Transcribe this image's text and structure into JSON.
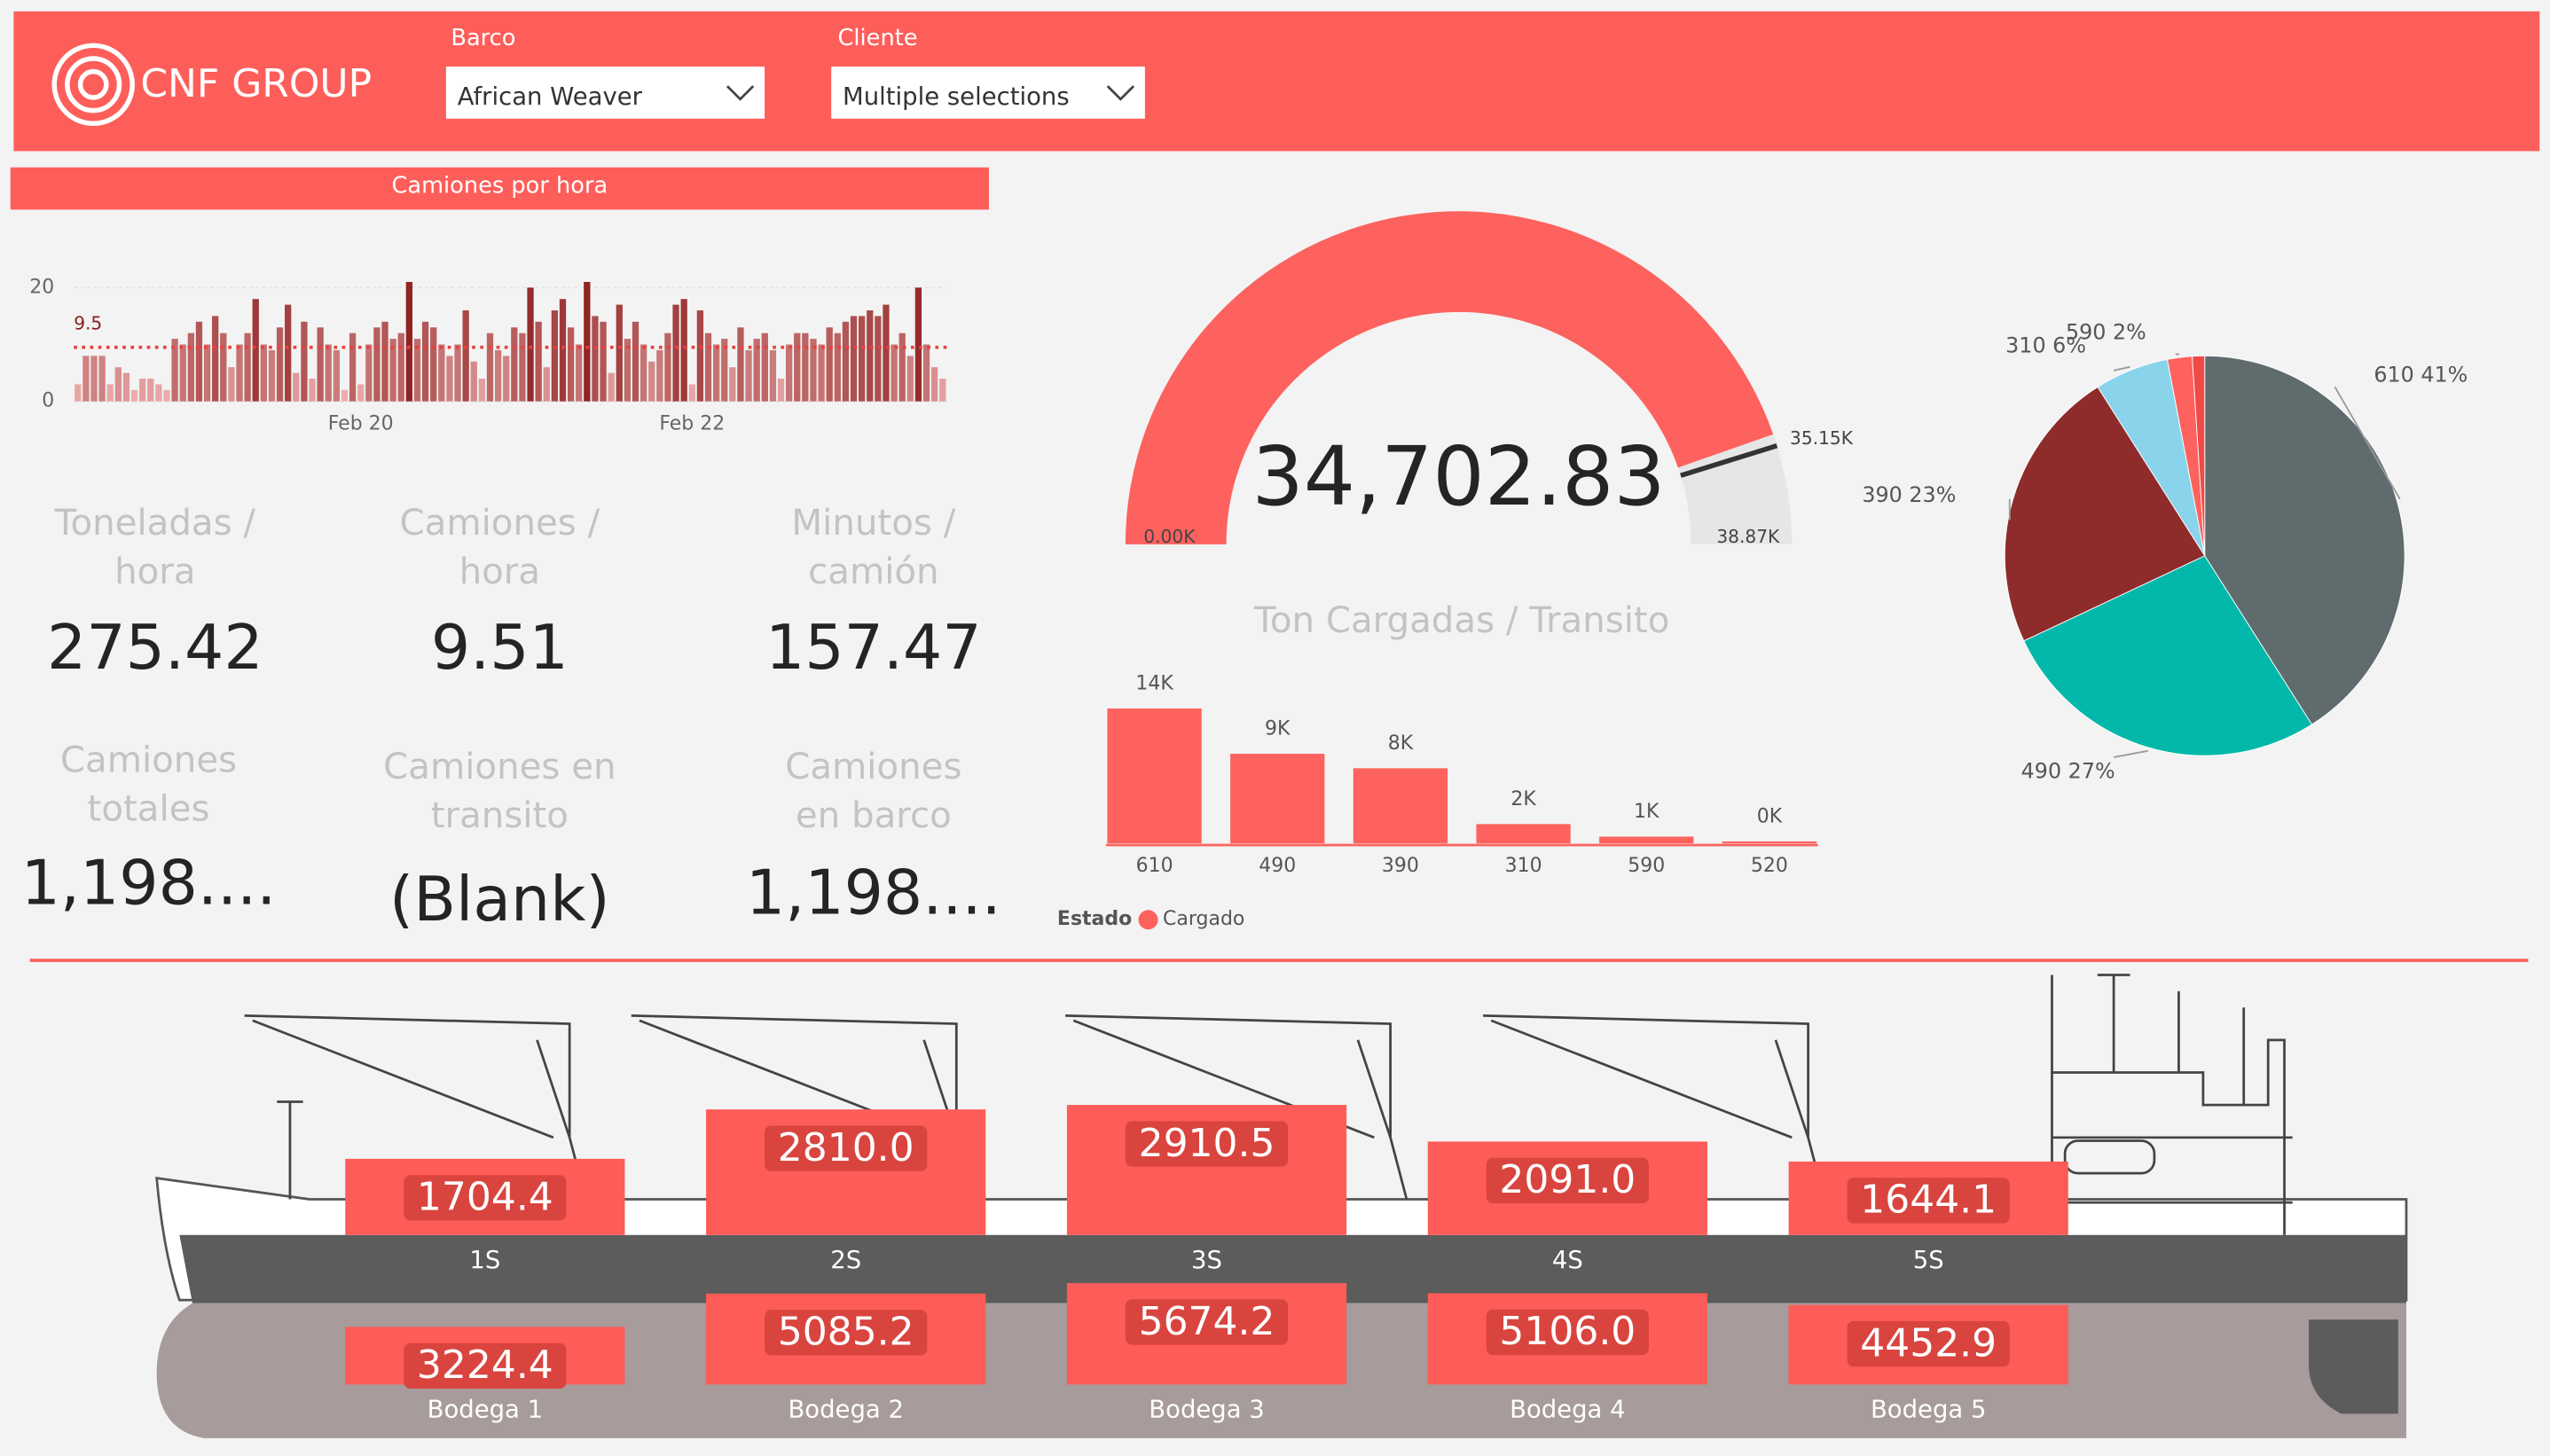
{
  "header": {
    "logo": "CNF GROUP",
    "filters": [
      {
        "label": "Barco",
        "value": "African Weaver"
      },
      {
        "label": "Cliente",
        "value": "Multiple selections"
      }
    ]
  },
  "kpis": [
    {
      "label": [
        "Toneladas /",
        "hora"
      ],
      "value": "275.42"
    },
    {
      "label": [
        "Camiones /",
        "hora"
      ],
      "value": "9.51"
    },
    {
      "label": [
        "Minutos /",
        "camión"
      ],
      "value": "157.47"
    },
    {
      "label": [
        "Camiones",
        "totales"
      ],
      "value": "1,198...."
    },
    {
      "label": [
        "Camiones en",
        "transito"
      ],
      "value": "(Blank)"
    },
    {
      "label": [
        "Camiones",
        "en barco"
      ],
      "value": "1,198...."
    }
  ],
  "chart_data": [
    {
      "type": "bar",
      "title": "Camiones por hora",
      "categories": [
        null,
        null,
        null,
        null,
        null,
        null,
        null,
        null,
        null,
        null,
        null,
        null,
        null,
        null,
        null,
        null,
        null,
        null,
        null,
        null,
        null,
        null,
        null,
        null,
        null,
        null,
        null,
        null,
        null,
        null,
        null,
        null,
        null,
        null,
        null,
        "Feb 20",
        null,
        null,
        null,
        null,
        null,
        null,
        null,
        null,
        null,
        null,
        null,
        null,
        null,
        null,
        null,
        null,
        null,
        null,
        null,
        null,
        null,
        null,
        null,
        null,
        null,
        null,
        null,
        null,
        null,
        null,
        null,
        null,
        null,
        null,
        null,
        null,
        null,
        null,
        null,
        null,
        "Feb 22",
        null,
        null,
        null,
        null,
        null,
        null,
        null,
        null,
        null,
        null,
        null,
        null,
        null,
        null,
        null,
        null,
        null,
        null,
        null,
        null,
        null,
        null,
        null,
        null,
        null,
        null,
        null,
        null,
        null,
        null,
        null
      ],
      "values": [
        3,
        8,
        8,
        8,
        3,
        6,
        5,
        2,
        4,
        4,
        3,
        2,
        11,
        10,
        12,
        14,
        10,
        15,
        12,
        6,
        10,
        12,
        18,
        10,
        9,
        13,
        17,
        5,
        14,
        4,
        13,
        10,
        9,
        2,
        12,
        3,
        10,
        13,
        14,
        11,
        12,
        21,
        11,
        14,
        13,
        10,
        8,
        10,
        16,
        7,
        4,
        12,
        9,
        8,
        13,
        12,
        20,
        14,
        6,
        16,
        18,
        13,
        10,
        21,
        15,
        14,
        5,
        17,
        11,
        14,
        10,
        7,
        9,
        12,
        17,
        18,
        3,
        16,
        12,
        10,
        11,
        6,
        13,
        9,
        11,
        12,
        9,
        4,
        10,
        12,
        12,
        11,
        10,
        13,
        12,
        14,
        15,
        15,
        16,
        15,
        17,
        10,
        12,
        8,
        20,
        10,
        6,
        4
      ],
      "color_low": "#f6bcbc",
      "color_high": "#8b1c1c",
      "ylim": [
        0,
        22
      ],
      "yticks": [
        0,
        20
      ],
      "grid": true,
      "reference_line": 9.5,
      "reference_color": "#e8413c"
    },
    {
      "type": "gauge",
      "title": "Ton Cargadas / Transito",
      "value": 34702.83,
      "value_label": "34,702.83",
      "ylim": [
        0,
        38870
      ],
      "yticks": [
        {
          "value": 0,
          "label": "0.00K"
        },
        {
          "value": 38870,
          "label": "38.87K"
        }
      ],
      "target": {
        "value": 35150,
        "label": "35.15K"
      },
      "color": "#fd625e",
      "track_color": "#e6e6e6",
      "target_color": "#333333"
    },
    {
      "type": "bar",
      "legend_title": "Estado",
      "categories": [
        "610",
        "490",
        "390",
        "310",
        "590",
        "520"
      ],
      "series": [
        {
          "name": "Cargado",
          "color": "#fd625e",
          "values": [
            14000,
            9300,
            7800,
            2000,
            700,
            200
          ],
          "value_labels": [
            "14K",
            "9K",
            "8K",
            "2K",
            "1K",
            "0K"
          ]
        }
      ]
    },
    {
      "type": "pie",
      "categories": [
        "610",
        "490",
        "390",
        "310",
        "590",
        null
      ],
      "values": [
        41,
        27,
        23,
        6,
        2,
        1
      ],
      "value_labels": [
        "41%",
        "27%",
        "23%",
        "6%",
        "2%",
        null
      ],
      "colors": [
        "#5f6b6d",
        "#01b8aa",
        "#8e2b2b",
        "#8ad4eb",
        "#fd625e",
        "#f04a46"
      ]
    },
    {
      "type": "ship-bar",
      "categories": [
        "1S",
        "2S",
        "3S",
        "4S",
        "5S"
      ],
      "values": [
        1704.4,
        2810.0,
        2910.5,
        2091.0,
        1644.1
      ],
      "value_labels": [
        "1704.4",
        "2810.0",
        "2910.5",
        "2091.0",
        "1644.1"
      ],
      "color": "#fd5c58"
    },
    {
      "type": "ship-bar",
      "categories": [
        "Bodega 1",
        "Bodega 2",
        "Bodega 3",
        "Bodega 4",
        "Bodega 5"
      ],
      "values": [
        3224.4,
        5085.2,
        5674.2,
        5106.0,
        4452.9
      ],
      "value_labels": [
        "3224.4",
        "5085.2",
        "5674.2",
        "5106.0",
        "4452.9"
      ],
      "color": "#fd5c58"
    }
  ]
}
